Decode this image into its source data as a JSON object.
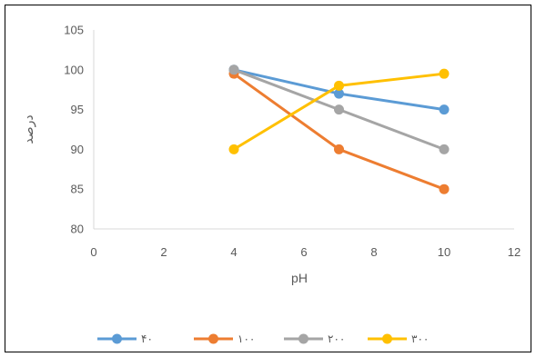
{
  "chart_data": {
    "type": "line",
    "xlabel": "pH",
    "ylabel": "درصد",
    "xlim": [
      0,
      12
    ],
    "ylim": [
      80,
      105
    ],
    "xticks": [
      0,
      2,
      4,
      6,
      8,
      10,
      12
    ],
    "yticks": [
      80,
      85,
      90,
      95,
      100,
      105
    ],
    "grid": false,
    "legend_position": "bottom",
    "series": [
      {
        "name": "۴۰",
        "color": "#5B9BD5",
        "points": [
          {
            "x": 4,
            "y": 100
          },
          {
            "x": 7,
            "y": 97
          },
          {
            "x": 10,
            "y": 95
          }
        ]
      },
      {
        "name": "۱۰۰",
        "color": "#ED7D31",
        "points": [
          {
            "x": 4,
            "y": 99.5
          },
          {
            "x": 7,
            "y": 90
          },
          {
            "x": 10,
            "y": 85
          }
        ]
      },
      {
        "name": "۲۰۰",
        "color": "#A5A5A5",
        "points": [
          {
            "x": 4,
            "y": 100
          },
          {
            "x": 7,
            "y": 95
          },
          {
            "x": 10,
            "y": 90
          }
        ]
      },
      {
        "name": "۳۰۰",
        "color": "#FFC000",
        "points": [
          {
            "x": 4,
            "y": 90
          },
          {
            "x": 7,
            "y": 98
          },
          {
            "x": 10,
            "y": 99.5
          }
        ]
      }
    ]
  }
}
